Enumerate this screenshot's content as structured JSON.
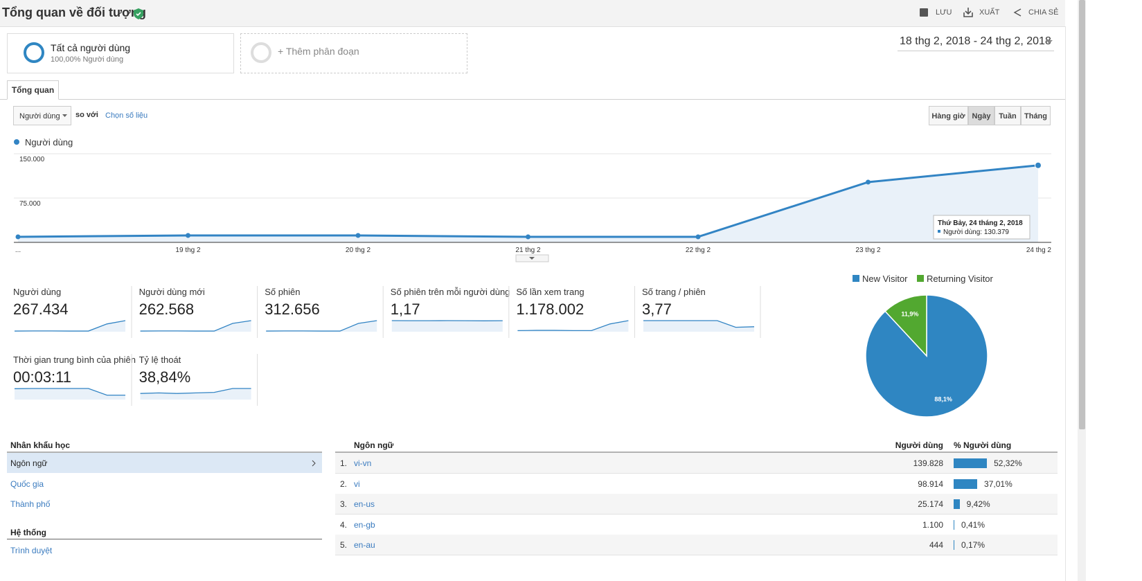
{
  "header": {
    "title": "Tổng quan về đối tượng",
    "actions": [
      "LƯU",
      "XUẤT",
      "CHIA SẺ"
    ]
  },
  "segments": [
    {
      "name": "Tất cả người dùng",
      "detail": "100,00% Người dùng"
    },
    {
      "name": "+ Thêm phân đoạn"
    }
  ],
  "date_range": "18 thg 2, 2018 - 24 thg 2, 2018",
  "tabs": [
    "Tổng quan"
  ],
  "controls": {
    "metric": "Người dùng",
    "compare": "so với",
    "pick": "Chọn số liệu",
    "intervals": [
      "Hàng giờ",
      "Ngày",
      "Tuần",
      "Tháng"
    ],
    "active_interval": 1
  },
  "chart_data": [
    {
      "type": "line",
      "categories": [
        "...",
        "19 thg 2",
        "20 thg 2",
        "21 thg 2",
        "22 thg 2",
        "23 thg 2",
        "24 thg 2"
      ],
      "series": [
        {
          "name": "Người dùng",
          "color": "#3284c4",
          "values": [
            9400,
            11700,
            11700,
            9400,
            9400,
            102000,
            130379
          ]
        }
      ],
      "ylim": [
        0,
        150000
      ],
      "yticks": [
        {
          "value": 75000,
          "label": "75.000"
        },
        {
          "value": 150000,
          "label": "150.000"
        }
      ],
      "grid": true,
      "tooltip": {
        "title": "Thứ Bảy, 24 tháng 2, 2018",
        "text": "Người dùng: 130.379"
      }
    },
    {
      "type": "pie",
      "categories": [
        "New Visitor",
        "Returning Visitor"
      ],
      "values": [
        88.1,
        11.9
      ],
      "value_labels": [
        "88,1%",
        "11,9%"
      ],
      "colors": [
        "#2f86c2",
        "#52a830"
      ]
    }
  ],
  "scorecards": [
    {
      "label": "Người dùng",
      "value": "267.434",
      "spark": [
        6,
        7,
        7,
        6,
        6,
        70,
        100
      ]
    },
    {
      "label": "Người dùng mới",
      "value": "262.568",
      "spark": [
        6,
        7,
        7,
        6,
        6,
        75,
        100
      ]
    },
    {
      "label": "Số phiên",
      "value": "312.656",
      "spark": [
        6,
        7,
        7,
        6,
        6,
        75,
        100
      ]
    },
    {
      "label": "Số phiên trên mỗi người dùng",
      "value": "1,17",
      "spark": [
        100,
        99,
        99,
        100,
        99,
        98,
        99
      ]
    },
    {
      "label": "Số lần xem trang",
      "value": "1.178.002",
      "spark": [
        10,
        12,
        12,
        10,
        10,
        70,
        100
      ]
    },
    {
      "label": "Số trang / phiên",
      "value": "3,77",
      "spark": [
        100,
        100,
        100,
        100,
        100,
        40,
        45
      ]
    },
    {
      "label": "Thời gian trung bình của phiên",
      "value": "00:03:11",
      "spark": [
        98,
        100,
        100,
        100,
        100,
        40,
        40
      ]
    },
    {
      "label": "Tỷ lệ thoát",
      "value": "38,84%",
      "spark": [
        55,
        60,
        55,
        60,
        65,
        100,
        100
      ]
    }
  ],
  "sidebar": [
    {
      "title": "Nhân khẩu học",
      "items": [
        "Ngôn ngữ",
        "Quốc gia",
        "Thành phố"
      ]
    },
    {
      "title": "Hệ thống",
      "items": [
        "Trình duyệt"
      ]
    }
  ],
  "table": {
    "headers": [
      "Ngôn ngữ",
      "Người dùng",
      "% Người dùng"
    ],
    "rows": [
      {
        "rank": "1.",
        "name": "vi-vn",
        "users": "139.828",
        "pct": 52.32,
        "pct_label": "52,32%"
      },
      {
        "rank": "2.",
        "name": "vi",
        "users": "98.914",
        "pct": 37.01,
        "pct_label": "37,01%"
      },
      {
        "rank": "3.",
        "name": "en-us",
        "users": "25.174",
        "pct": 9.42,
        "pct_label": "9,42%"
      },
      {
        "rank": "4.",
        "name": "en-gb",
        "users": "1.100",
        "pct": 0.41,
        "pct_label": "0,41%"
      },
      {
        "rank": "5.",
        "name": "en-au",
        "users": "444",
        "pct": 0.17,
        "pct_label": "0,17%"
      }
    ]
  }
}
